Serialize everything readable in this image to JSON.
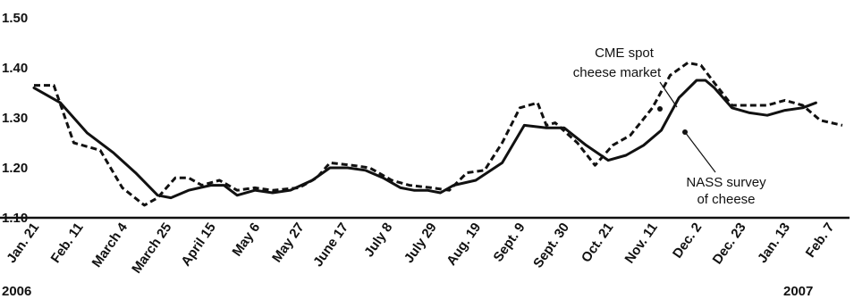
{
  "chart_data": {
    "type": "line",
    "title": "",
    "xlabel": "",
    "ylabel": "",
    "ylim": [
      1.1,
      1.5
    ],
    "yticks": [
      "1.10",
      "1.20",
      "1.30",
      "1.40",
      "1.50"
    ],
    "grid": false,
    "legend": "none",
    "categories": [
      "Jan. 21",
      "Feb. 11",
      "March 4",
      "March 25",
      "April 15",
      "May 6",
      "May 27",
      "June 17",
      "July 8",
      "July 29",
      "Aug. 19",
      "Sept. 9",
      "Sept. 30",
      "Oct. 21",
      "Nov. 11",
      "Dec. 2",
      "Dec. 23",
      "Jan. 13",
      "Feb. 7"
    ],
    "year_labels": {
      "start": "2006",
      "end": "2007"
    },
    "series": [
      {
        "name": "CME spot cheese market",
        "style": "dashed",
        "x": [
          0,
          0.45,
          0.9,
          1.5,
          2.0,
          2.5,
          2.8,
          3.2,
          3.5,
          3.8,
          4.2,
          4.6,
          5.0,
          5.4,
          6.0,
          6.4,
          6.7,
          7.2,
          7.6,
          8.1,
          8.5,
          9.0,
          9.4,
          9.8,
          10.2,
          10.6,
          11.0,
          11.4,
          11.6,
          11.8,
          12.3,
          12.7,
          13.1,
          13.5,
          14.0,
          14.4,
          14.8,
          15.1,
          15.4,
          15.8,
          16.2,
          16.6,
          17.0,
          17.4,
          17.8,
          18.3
        ],
        "values": [
          1.365,
          1.365,
          1.25,
          1.235,
          1.16,
          1.125,
          1.14,
          1.18,
          1.18,
          1.165,
          1.175,
          1.155,
          1.16,
          1.155,
          1.16,
          1.18,
          1.21,
          1.205,
          1.2,
          1.175,
          1.165,
          1.16,
          1.155,
          1.19,
          1.195,
          1.25,
          1.32,
          1.33,
          1.285,
          1.29,
          1.25,
          1.205,
          1.245,
          1.265,
          1.32,
          1.385,
          1.41,
          1.405,
          1.37,
          1.325,
          1.325,
          1.325,
          1.335,
          1.325,
          1.295,
          1.285
        ]
      },
      {
        "name": "NASS survey of cheese",
        "style": "solid",
        "x": [
          0,
          0.6,
          1.2,
          1.8,
          2.3,
          2.8,
          3.1,
          3.5,
          4.0,
          4.3,
          4.6,
          5.0,
          5.4,
          5.8,
          6.3,
          6.7,
          7.1,
          7.5,
          7.9,
          8.3,
          8.6,
          8.9,
          9.2,
          9.5,
          10.0,
          10.6,
          11.1,
          11.6,
          12.0,
          12.5,
          13.0,
          13.4,
          13.8,
          14.2,
          14.6,
          15.0,
          15.2,
          15.4,
          15.8,
          16.2,
          16.6,
          17.0,
          17.4,
          17.7
        ],
        "values": [
          1.36,
          1.33,
          1.27,
          1.23,
          1.19,
          1.145,
          1.14,
          1.155,
          1.165,
          1.165,
          1.145,
          1.155,
          1.15,
          1.155,
          1.175,
          1.2,
          1.2,
          1.195,
          1.18,
          1.16,
          1.155,
          1.155,
          1.15,
          1.165,
          1.175,
          1.21,
          1.285,
          1.28,
          1.28,
          1.245,
          1.215,
          1.225,
          1.245,
          1.275,
          1.34,
          1.375,
          1.375,
          1.36,
          1.32,
          1.31,
          1.305,
          1.315,
          1.32,
          1.33
        ]
      }
    ],
    "annotations": {
      "cme": {
        "line1": "CME spot",
        "line2": "cheese market"
      },
      "nass": {
        "line1": "NASS survey",
        "line2": "of cheese"
      }
    }
  }
}
